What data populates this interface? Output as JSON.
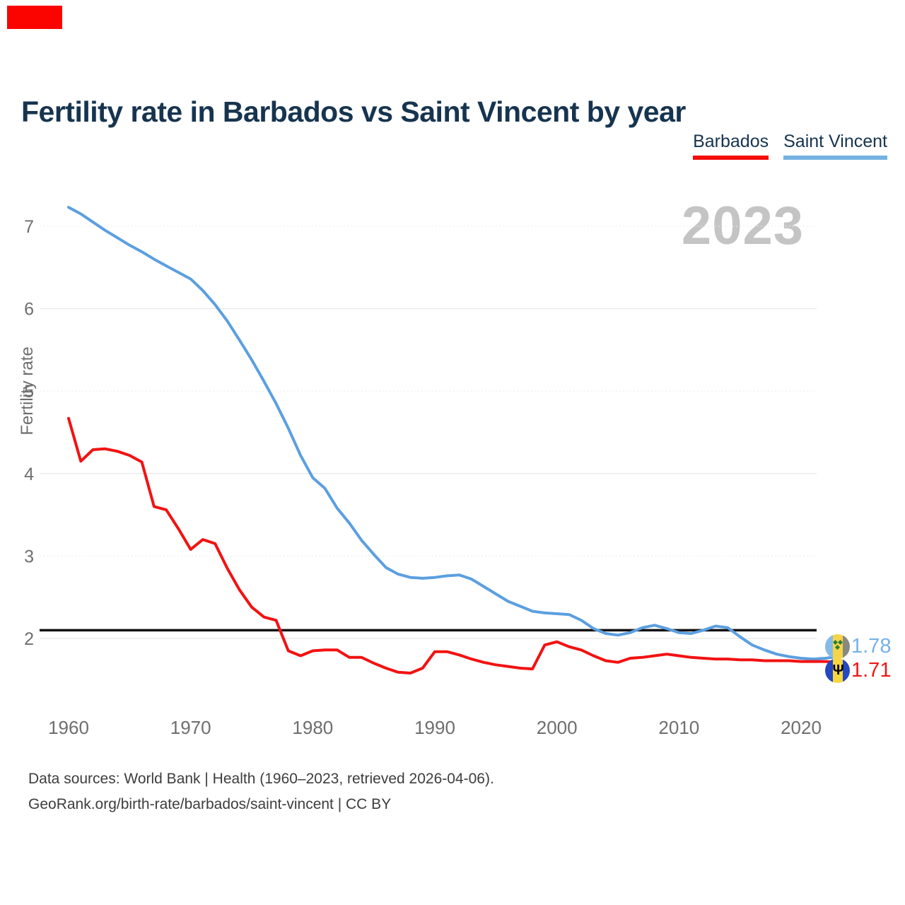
{
  "header": {
    "title": "Fertility rate in Barbados vs Saint Vincent by year"
  },
  "legend": [
    {
      "label": "Barbados",
      "color": "#f40b0b"
    },
    {
      "label": "Saint Vincent",
      "color": "#74b2e2"
    }
  ],
  "watermark": "2023",
  "end_labels": [
    {
      "series": "Saint Vincent",
      "value": "1.78",
      "color": "#74b1e9",
      "flag": "saint-vincent"
    },
    {
      "series": "Barbados",
      "value": "1.71",
      "color": "#f21414",
      "flag": "barbados"
    }
  ],
  "footer": {
    "line1": "Data sources: World Bank | Health (1960–2023, retrieved 2026-04-06).",
    "line2": "GeoRank.org/birth-rate/barbados/saint-vincent | CC BY"
  },
  "chart_data": {
    "type": "line",
    "title": "Fertility rate in Barbados vs Saint Vincent by year",
    "xlabel": "",
    "ylabel": "Fertility rate",
    "xlim": [
      1960,
      2023
    ],
    "ylim": [
      1.5,
      7.5
    ],
    "x_ticks": [
      1960,
      1970,
      1980,
      1990,
      2000,
      2010,
      2020
    ],
    "y_ticks": [
      7,
      6,
      5,
      4,
      3,
      2
    ],
    "grid": true,
    "legend_position": "top-right",
    "reference_line": 2.1,
    "x": [
      1960,
      1961,
      1962,
      1963,
      1964,
      1965,
      1966,
      1967,
      1968,
      1969,
      1970,
      1971,
      1972,
      1973,
      1974,
      1975,
      1976,
      1977,
      1978,
      1979,
      1980,
      1981,
      1982,
      1983,
      1984,
      1985,
      1986,
      1987,
      1988,
      1989,
      1990,
      1991,
      1992,
      1993,
      1994,
      1995,
      1996,
      1997,
      1998,
      1999,
      2000,
      2001,
      2002,
      2003,
      2004,
      2005,
      2006,
      2007,
      2008,
      2009,
      2010,
      2011,
      2012,
      2013,
      2014,
      2015,
      2016,
      2017,
      2018,
      2019,
      2020,
      2021,
      2022,
      2023
    ],
    "series": [
      {
        "name": "Saint Vincent",
        "color": "#5b9fe0",
        "values": [
          7.23,
          7.15,
          7.05,
          6.95,
          6.86,
          6.77,
          6.69,
          6.6,
          6.52,
          6.44,
          6.36,
          6.22,
          6.05,
          5.85,
          5.62,
          5.38,
          5.12,
          4.85,
          4.55,
          4.22,
          3.95,
          3.82,
          3.58,
          3.4,
          3.19,
          3.02,
          2.86,
          2.78,
          2.74,
          2.73,
          2.74,
          2.76,
          2.77,
          2.72,
          2.63,
          2.54,
          2.45,
          2.39,
          2.33,
          2.31,
          2.3,
          2.29,
          2.22,
          2.12,
          2.06,
          2.04,
          2.07,
          2.13,
          2.16,
          2.12,
          2.07,
          2.06,
          2.1,
          2.15,
          2.13,
          2.02,
          1.92,
          1.86,
          1.81,
          1.78,
          1.76,
          1.75,
          1.76,
          1.78
        ]
      },
      {
        "name": "Barbados",
        "color": "#f21212",
        "values": [
          4.67,
          4.15,
          4.29,
          4.3,
          4.27,
          4.22,
          4.14,
          3.6,
          3.56,
          3.33,
          3.08,
          3.2,
          3.15,
          2.85,
          2.59,
          2.38,
          2.26,
          2.22,
          1.85,
          1.79,
          1.85,
          1.86,
          1.86,
          1.77,
          1.77,
          1.7,
          1.64,
          1.59,
          1.58,
          1.64,
          1.84,
          1.84,
          1.8,
          1.75,
          1.71,
          1.68,
          1.66,
          1.64,
          1.63,
          1.92,
          1.96,
          1.9,
          1.86,
          1.79,
          1.73,
          1.71,
          1.76,
          1.77,
          1.79,
          1.81,
          1.79,
          1.77,
          1.76,
          1.75,
          1.75,
          1.74,
          1.74,
          1.73,
          1.73,
          1.73,
          1.72,
          1.72,
          1.72,
          1.71
        ]
      }
    ]
  }
}
